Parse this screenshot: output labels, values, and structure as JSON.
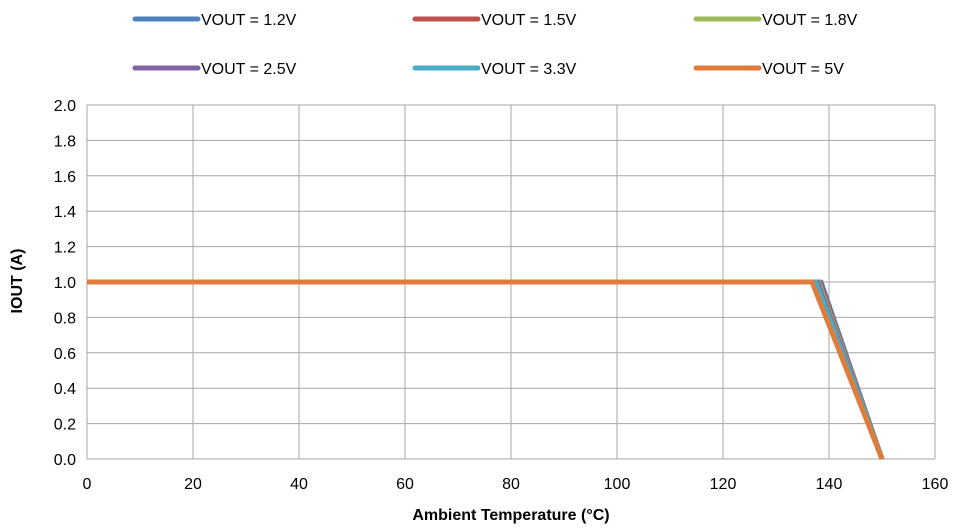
{
  "chart_data": {
    "type": "line",
    "title": "",
    "xlabel": "Ambient Temperature (°C)",
    "ylabel": "IOUT (A)",
    "xlim": [
      0,
      160
    ],
    "ylim": [
      0,
      2.0
    ],
    "x_ticks": [
      "0",
      "20",
      "40",
      "60",
      "80",
      "100",
      "120",
      "140",
      "160"
    ],
    "y_ticks": [
      "0.0",
      "0.2",
      "0.4",
      "0.6",
      "0.8",
      "1.0",
      "1.2",
      "1.4",
      "1.6",
      "1.8",
      "2.0"
    ],
    "grid": true,
    "legend_position": "top",
    "series": [
      {
        "name": "VOUT = 1.2V",
        "color": "#4F81BD",
        "points": [
          [
            0,
            1.0
          ],
          [
            138.5,
            1.0
          ],
          [
            150,
            0.0
          ]
        ]
      },
      {
        "name": "VOUT = 1.5V",
        "color": "#C0504D",
        "points": [
          [
            0,
            1.0
          ],
          [
            138.2,
            1.0
          ],
          [
            150,
            0.0
          ]
        ]
      },
      {
        "name": "VOUT = 1.8V",
        "color": "#9BBB59",
        "points": [
          [
            0,
            1.0
          ],
          [
            138.0,
            1.0
          ],
          [
            150,
            0.0
          ]
        ]
      },
      {
        "name": "VOUT = 2.5V",
        "color": "#8064A2",
        "points": [
          [
            0,
            1.0
          ],
          [
            137.8,
            1.0
          ],
          [
            150,
            0.0
          ]
        ]
      },
      {
        "name": "VOUT = 3.3V",
        "color": "#4BACC6",
        "points": [
          [
            0,
            1.0
          ],
          [
            137.5,
            1.0
          ],
          [
            150,
            0.0
          ]
        ]
      },
      {
        "name": "VOUT = 5V",
        "color": "#E07B39",
        "points": [
          [
            0,
            1.0
          ],
          [
            136.8,
            1.0
          ],
          [
            150,
            0.0
          ]
        ]
      }
    ]
  }
}
